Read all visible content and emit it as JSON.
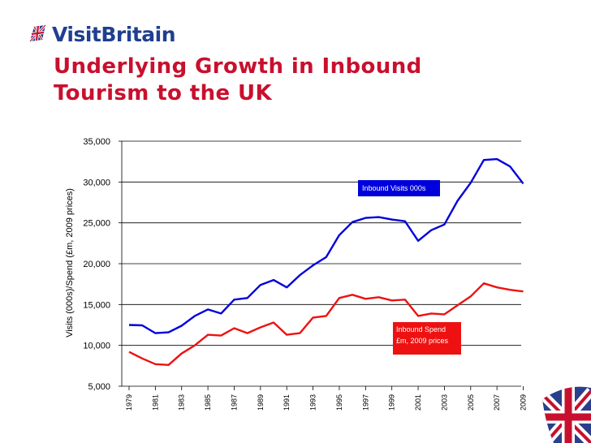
{
  "brand": {
    "name": "VisitBritain"
  },
  "title": "Underlying Growth in Inbound Tourism to the UK",
  "chart_data": {
    "type": "line",
    "title": "",
    "xlabel": "",
    "ylabel": "Visits (000s)/Spend (£m, 2009 prices)",
    "ylim": [
      5000,
      35000
    ],
    "y_ticks": [
      "35,000",
      "30,000",
      "25,000",
      "20,000",
      "15,000",
      "10,000",
      "5,000"
    ],
    "y_tick_values": [
      35000,
      30000,
      25000,
      20000,
      15000,
      10000,
      5000
    ],
    "x_tick_labels": [
      "1979",
      "1981",
      "1983",
      "1985",
      "1987",
      "1989",
      "1991",
      "1993",
      "1995",
      "1997",
      "1999",
      "2001",
      "2003",
      "2005",
      "2007",
      "2009"
    ],
    "x": [
      1979,
      1980,
      1981,
      1982,
      1983,
      1984,
      1985,
      1986,
      1987,
      1988,
      1989,
      1990,
      1991,
      1992,
      1993,
      1994,
      1995,
      1996,
      1997,
      1998,
      1999,
      2000,
      2001,
      2002,
      2003,
      2004,
      2005,
      2006,
      2007,
      2008,
      2009
    ],
    "grid": true,
    "series": [
      {
        "name": "Inbound Visits 000s",
        "color": "#0000dd",
        "values": [
          12500,
          12450,
          11500,
          11600,
          12400,
          13600,
          14400,
          13900,
          15600,
          15800,
          17400,
          18000,
          17100,
          18600,
          19800,
          20800,
          23500,
          25100,
          25600,
          25700,
          25400,
          25200,
          22800,
          24100,
          24800,
          27700,
          29900,
          32700,
          32800,
          31900,
          29800
        ]
      },
      {
        "name": "Inbound Spend £m, 2009 prices",
        "color": "#ee1111",
        "values": [
          9200,
          8400,
          7700,
          7600,
          9000,
          10000,
          11300,
          11200,
          12100,
          11500,
          12200,
          12800,
          11300,
          11500,
          13400,
          13600,
          15800,
          16200,
          15700,
          15900,
          15500,
          15600,
          13600,
          13900,
          13800,
          14900,
          16000,
          17600,
          17100,
          16800,
          16600
        ]
      }
    ],
    "annotations": [
      {
        "text": "Inbound Visits 000s",
        "series": 0
      },
      {
        "lines": [
          "Inbound Spend",
          "£m, 2009 prices"
        ],
        "series": 1
      }
    ]
  }
}
